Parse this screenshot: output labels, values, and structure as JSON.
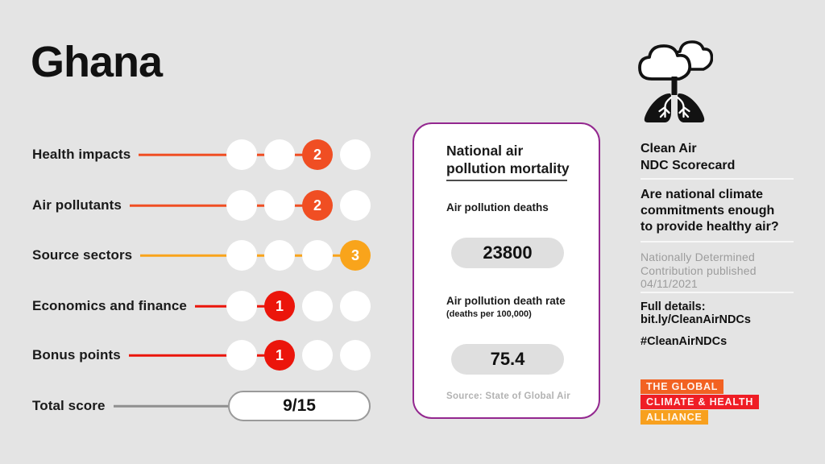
{
  "page": {
    "title": "Ghana",
    "background": "#E4E4E4"
  },
  "chart_data": {
    "type": "table",
    "title": "Ghana — Clean Air NDC Scorecard",
    "categories": [
      "Health impacts",
      "Air pollutants",
      "Source sectors",
      "Economics and finance",
      "Bonus points"
    ],
    "values": [
      2,
      2,
      3,
      1,
      1
    ],
    "max_per_category": 3,
    "total_score": "9/15",
    "air_pollution_deaths": 23800,
    "air_pollution_death_rate_per_100000": 75.4
  },
  "scorecard": {
    "dots_per_row": 4,
    "rows": [
      {
        "label": "Health impacts",
        "score": "2",
        "dot_index": 3,
        "color": "#F04E23"
      },
      {
        "label": "Air pollutants",
        "score": "2",
        "dot_index": 3,
        "color": "#F04E23"
      },
      {
        "label": "Source sectors",
        "score": "3",
        "dot_index": 4,
        "color": "#F9A41B"
      },
      {
        "label": "Economics and finance",
        "score": "1",
        "dot_index": 2,
        "color": "#EB150B"
      },
      {
        "label": "Bonus points",
        "score": "1",
        "dot_index": 2,
        "color": "#EB150B"
      }
    ],
    "total": {
      "label": "Total score",
      "value": "9/15",
      "line_color": "#8F8F8F"
    }
  },
  "mortality_card": {
    "title": "National air\npollution mortality",
    "border_color": "#93278F",
    "deaths_label": "Air pollution deaths",
    "deaths_value": "23800",
    "rate_label": "Air pollution death rate",
    "rate_sublabel": "(deaths per 100,000)",
    "rate_value": "75.4",
    "source": "Source: State of Global Air"
  },
  "sidebar": {
    "icon": "lungs-cloud-icon",
    "heading": "Clean Air\nNDC Scorecard",
    "question": "Are national climate\ncommitments enough\nto provide healthy air?",
    "note": "Nationally Determined\nContribution published\n04/11/2021",
    "details": "Full details:\nbit.ly/CleanAirNDCs",
    "hashtag": "#CleanAirNDCs",
    "logo_lines": [
      {
        "text": "THE GLOBAL",
        "bg": "#F26222"
      },
      {
        "text": "CLIMATE & HEALTH",
        "bg": "#EF1D25"
      },
      {
        "text": "ALLIANCE",
        "bg": "#F8A01E"
      }
    ]
  }
}
